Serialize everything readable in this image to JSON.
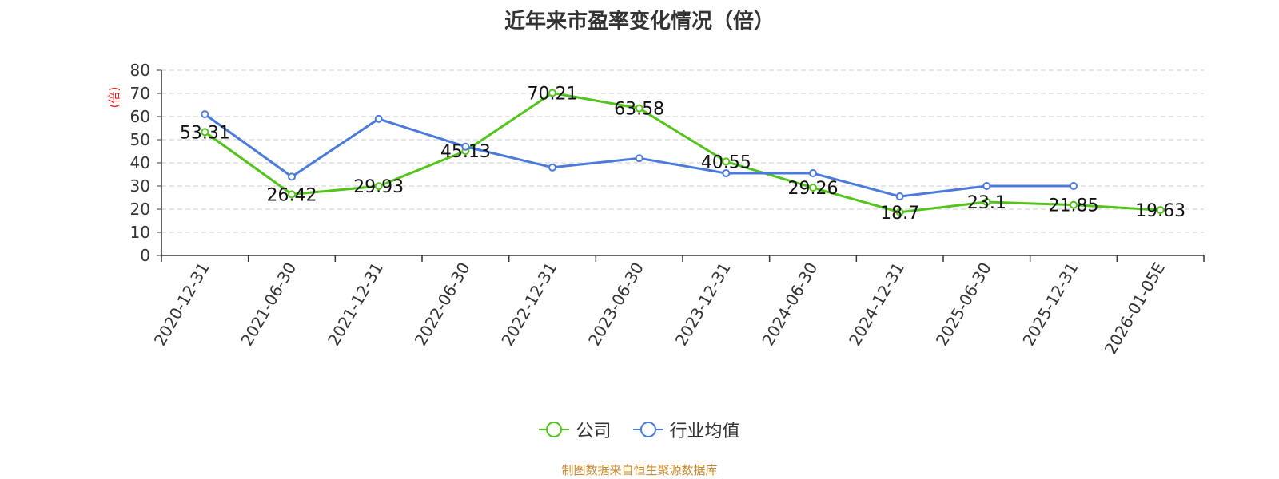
{
  "colors": {
    "company": "#52c41a",
    "industry": "#4a7bdc",
    "ylabel": "#e02020",
    "source": "#c8872b"
  },
  "legend": {
    "company_label": "公司",
    "industry_label": "行业均值"
  },
  "source_note": "制图数据来自恒生聚源数据库",
  "chart_data": {
    "type": "line",
    "title": "近年来市盈率变化情况（倍）",
    "xlabel": "",
    "ylabel": "(倍)",
    "ylim": [
      0,
      80
    ],
    "yticks": [
      0,
      10,
      20,
      30,
      40,
      50,
      60,
      70,
      80
    ],
    "grid": true,
    "legend_position": "bottom",
    "categories": [
      "2020-12-31",
      "2021-06-30",
      "2021-12-31",
      "2022-06-30",
      "2022-12-31",
      "2023-06-30",
      "2023-12-31",
      "2024-06-30",
      "2024-12-31",
      "2025-06-30",
      "2025-12-31",
      "2026-01-05E"
    ],
    "series": [
      {
        "name": "公司",
        "values": [
          53.31,
          26.42,
          29.93,
          45.13,
          70.21,
          63.58,
          40.55,
          29.26,
          18.7,
          23.1,
          21.85,
          19.63
        ],
        "labels": [
          "53.31",
          "26.42",
          "29.93",
          "45.13",
          "70.21",
          "63.58",
          "40.55",
          "29.26",
          "18.7",
          "23.1",
          "21.85",
          "19.63"
        ]
      },
      {
        "name": "行业均值",
        "values": [
          61,
          34,
          59,
          47,
          38,
          42,
          35.5,
          35.5,
          25.5,
          30,
          30,
          null
        ]
      }
    ]
  }
}
